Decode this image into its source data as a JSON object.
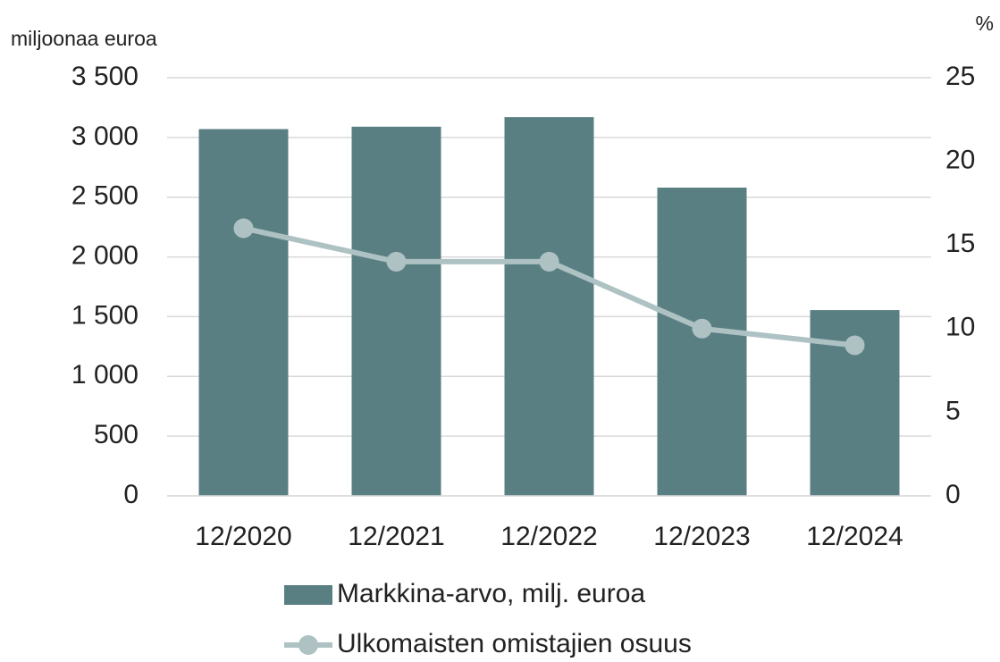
{
  "chart_data": {
    "type": "bar",
    "y_label": "miljoonaa euroa",
    "y2_label": "%",
    "categories": [
      "12/2020",
      "12/2021",
      "12/2022",
      "12/2023",
      "12/2024"
    ],
    "series": [
      {
        "name": "Markkina-arvo, milj. euroa",
        "type": "bar",
        "color": "#5a7f83",
        "values": [
          3070,
          3090,
          3170,
          2580,
          1555
        ]
      },
      {
        "name": "Ulkomaisten omistajien osuus",
        "type": "line",
        "axis": "y2",
        "color": "#aec2c4",
        "values": [
          16,
          14,
          14,
          10,
          9
        ]
      }
    ],
    "ylim": [
      0,
      3500
    ],
    "yticks": [
      0,
      500,
      {
        "value": 1000,
        "label": "1 000"
      },
      {
        "value": 1500,
        "label": "1 500"
      },
      {
        "value": 2000,
        "label": "2 000"
      },
      {
        "value": 2500,
        "label": "2 500"
      },
      {
        "value": 3000,
        "label": "3 000"
      },
      {
        "value": 3500,
        "label": "3 500"
      }
    ],
    "y2lim": [
      0,
      25
    ],
    "y2ticks": [
      0,
      5,
      10,
      15,
      20,
      25
    ],
    "grid": true
  }
}
